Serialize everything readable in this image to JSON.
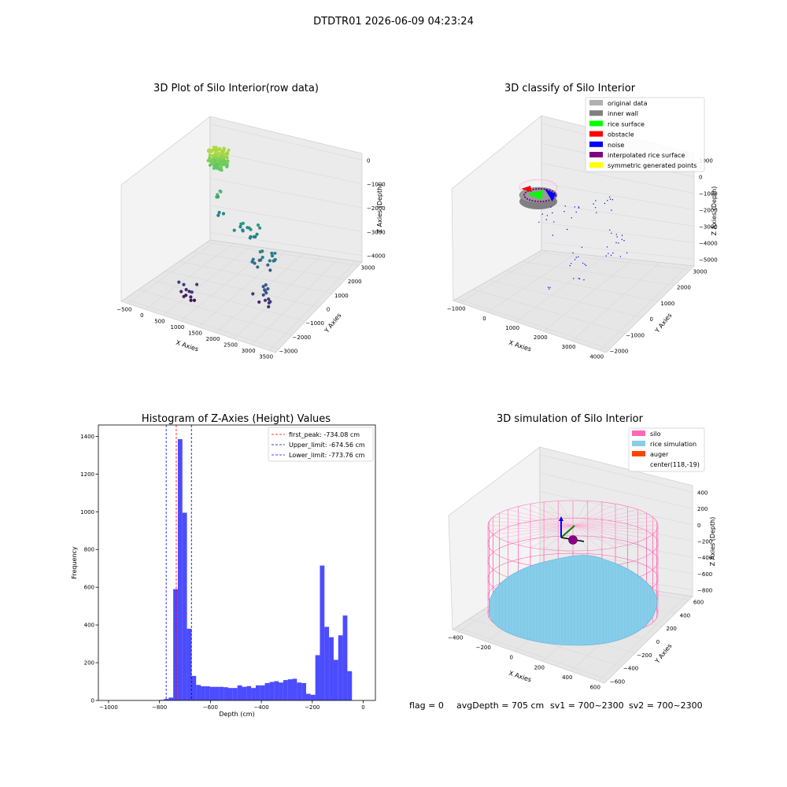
{
  "suptitle": "DTDTR01 2026-06-09 04:23:24",
  "footer": {
    "flag": "flag = 0",
    "avg": "avgDepth = 705 cm",
    "sv1": "sv1 = 700~2300",
    "sv2": "sv2 = 700~2300"
  },
  "chart_data": [
    {
      "type": "scatter",
      "panel": "raw",
      "title": "3D Plot of Silo Interior(row data)",
      "xlabel": "X Axies",
      "ylabel": "Y Axies",
      "zlabel": "Z Axies (Depth)",
      "x_ticks": [
        "−500",
        "0",
        "500",
        "1000",
        "1500",
        "2000",
        "2500",
        "3000",
        "3500"
      ],
      "y_ticks": [
        "−3000",
        "−2000",
        "−1000",
        "0",
        "1000",
        "2000",
        "3000"
      ],
      "z_ticks": [
        "−4000",
        "−3000",
        "−2000",
        "−1000",
        "0"
      ],
      "xlim": [
        -600,
        3600
      ],
      "ylim": [
        -3200,
        3200
      ],
      "zlim": [
        -4400,
        200
      ],
      "colormap": "viridis by depth",
      "clusters": [
        {
          "x": [
            -350,
            50
          ],
          "y": [
            2300,
            2900
          ],
          "z": [
            -300,
            -1000
          ],
          "n": 140
        },
        {
          "x": [
            200,
            500
          ],
          "y": [
            1000,
            1800
          ],
          "z": [
            -1200,
            -2600
          ],
          "n": 8
        },
        {
          "x": [
            900,
            1600
          ],
          "y": [
            600,
            1200
          ],
          "z": [
            -1800,
            -2500
          ],
          "n": 16
        },
        {
          "x": [
            1800,
            2400
          ],
          "y": [
            -400,
            400
          ],
          "z": [
            -2200,
            -3200
          ],
          "n": 18
        },
        {
          "x": [
            2100,
            2700
          ],
          "y": [
            -1500,
            -800
          ],
          "z": [
            -3000,
            -4000
          ],
          "n": 14
        },
        {
          "x": [
            500,
            1000
          ],
          "y": [
            -2200,
            -1600
          ],
          "z": [
            -3500,
            -4300
          ],
          "n": 12
        }
      ]
    },
    {
      "type": "scatter",
      "panel": "classify",
      "title": "3D classify of Silo Interior",
      "x_ticks": [
        "−1000",
        "0",
        "1000",
        "2000",
        "3000",
        "4000"
      ],
      "y_ticks": [
        "−2000",
        "−1000",
        "0",
        "1000",
        "2000",
        "3000"
      ],
      "z_ticks": [
        "−5000",
        "−4000",
        "−3000",
        "−2000",
        "−1000",
        "0",
        "1000"
      ],
      "xlabel": "X Axies",
      "ylabel": "Y Axies",
      "zlabel": "Z Axies (Depth)",
      "legend": [
        {
          "label": "original data",
          "color": "#b0b0b0"
        },
        {
          "label": "inner wall",
          "color": "#808080"
        },
        {
          "label": "rice surface",
          "color": "#00ff00"
        },
        {
          "label": "obstacle",
          "color": "#ff0000"
        },
        {
          "label": "noise",
          "color": "#0000ff"
        },
        {
          "label": "interpolated rice surface",
          "color": "#800080"
        },
        {
          "label": "symmetric generated points",
          "color": "#ffff00"
        }
      ]
    },
    {
      "type": "bar",
      "panel": "histogram",
      "title": "Histogram of Z-Axies (Height) Values",
      "xlabel": "Depth (cm)",
      "ylabel": "Frequency",
      "xlim": [
        -1040,
        48
      ],
      "ylim": [
        0,
        1460
      ],
      "x_ticks": [
        -1000,
        -800,
        -600,
        -400,
        -200,
        0
      ],
      "y_ticks": [
        0,
        200,
        400,
        600,
        800,
        1000,
        1200,
        1400
      ],
      "x_tick_labels": [
        "−1000",
        "−800",
        "−600",
        "−400",
        "−200",
        "0"
      ],
      "y_tick_labels": [
        "0",
        "200",
        "400",
        "600",
        "800",
        "1000",
        "1200",
        "1400"
      ],
      "bar_color": "#0000ff",
      "bin_width": 18,
      "bin_start": [
        -800,
        -782,
        -764,
        -746,
        -728,
        -710,
        -692,
        -674,
        -656,
        -638,
        -620,
        -602,
        -584,
        -566,
        -548,
        -530,
        -512,
        -494,
        -476,
        -458,
        -440,
        -422,
        -404,
        -386,
        -368,
        -350,
        -332,
        -314,
        -296,
        -278,
        -260,
        -242,
        -224,
        -206,
        -188,
        -170,
        -152,
        -134,
        -116,
        -98,
        -80,
        -62,
        -44,
        -26,
        -8
      ],
      "counts": [
        3,
        8,
        15,
        590,
        1385,
        995,
        380,
        130,
        82,
        75,
        75,
        72,
        72,
        72,
        70,
        66,
        66,
        80,
        72,
        76,
        66,
        80,
        80,
        92,
        98,
        102,
        95,
        108,
        112,
        115,
        95,
        92,
        35,
        30,
        240,
        715,
        390,
        335,
        215,
        345,
        450,
        155,
        0,
        0,
        0
      ],
      "lines": [
        {
          "label": "first_peak: -734.08 cm",
          "x": -734.08,
          "color": "#ff0000"
        },
        {
          "label": "Upper_limit: -674.56 cm",
          "x": -674.56,
          "color": "#00008b"
        },
        {
          "label": "Lower_limit: -773.76 cm",
          "x": -773.76,
          "color": "#0000ff"
        }
      ]
    },
    {
      "type": "surface",
      "panel": "simulation",
      "title": "3D simulation of Silo Interior",
      "xlabel": "X Axies",
      "ylabel": "Y Axies",
      "zlabel": "Z Axies (Depth)",
      "x_ticks": [
        "−400",
        "−200",
        "0",
        "200",
        "400",
        "600"
      ],
      "y_ticks": [
        "−600",
        "−400",
        "−200",
        "0",
        "200",
        "400",
        "600"
      ],
      "z_ticks": [
        "−800",
        "−600",
        "−400",
        "−200",
        "0",
        "200",
        "400"
      ],
      "legend": [
        {
          "label": "silo",
          "color": "#ff69b4"
        },
        {
          "label": "rice simulation",
          "color": "#87ceeb"
        },
        {
          "label": "auger",
          "color": "#ff4500"
        },
        {
          "label": "center(118,-19)",
          "color": ""
        }
      ]
    }
  ]
}
